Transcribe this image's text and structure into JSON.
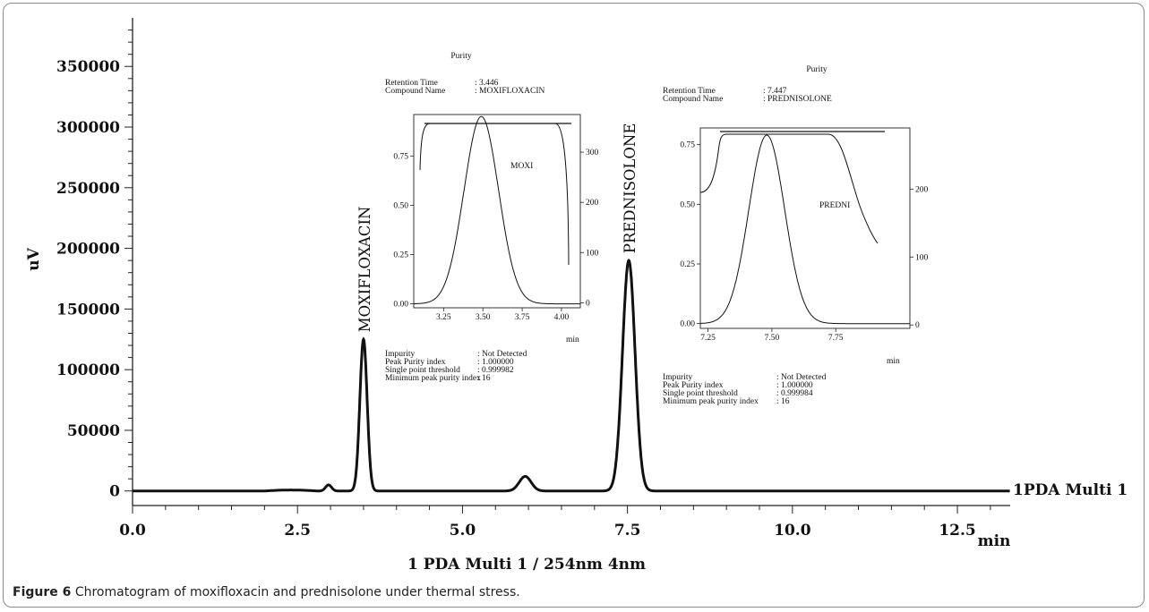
{
  "caption": {
    "label": "Figure 6",
    "text": "Chromatogram of moxifloxacin and prednisolone under thermal stress."
  },
  "chart_data": [
    {
      "type": "line",
      "xlabel": "1 PDA Multi 1 / 254nm 4nm",
      "x_unit": "min",
      "ylabel": "uV",
      "xlim": [
        0,
        13.3
      ],
      "ylim": [
        -12000,
        390000
      ],
      "xticks": [
        "0.0",
        "2.5",
        "5.0",
        "7.5",
        "10.0",
        "12.5"
      ],
      "yticks": [
        "0",
        "50000",
        "100000",
        "150000",
        "200000",
        "250000",
        "300000",
        "350000"
      ],
      "series_label": "1PDA Multi 1",
      "peaks": [
        {
          "label": "",
          "x": 2.97,
          "y": 5000
        },
        {
          "label": "MOXIFLOXACIN",
          "x": 3.5,
          "y": 125000
        },
        {
          "label": "",
          "x": 5.95,
          "y": 12000
        },
        {
          "label": "PREDNISOLONE",
          "x": 7.52,
          "y": 190000
        }
      ]
    },
    {
      "type": "line",
      "title": "Purity",
      "info": [
        {
          "key": "Retention Time",
          "value": ": 3.446"
        },
        {
          "key": "Compound Name",
          "value": ": MOXIFLOXACIN"
        }
      ],
      "series_label": "MOXI",
      "xlim": [
        3.06,
        4.12
      ],
      "xticks": [
        "3.25",
        "3.50",
        "3.75",
        "4.00"
      ],
      "ylim_left": [
        -0.02,
        0.96
      ],
      "yticks_left": [
        "0.00",
        "0.25",
        "0.50",
        "0.75"
      ],
      "ylim_right": [
        -10,
        375
      ],
      "yticks_right": [
        "0",
        "100",
        "200",
        "300"
      ],
      "x_unit": "min",
      "peak_x": 3.49,
      "peak_y": 0.95,
      "purity": [
        {
          "key": "Impurity",
          "value": ": Not Detected"
        },
        {
          "key": "Peak Purity index",
          "value": ": 1.000000"
        },
        {
          "key": "Single point threshold",
          "value": ": 0.999982"
        },
        {
          "key": "Minimum peak purity index",
          "value": ": 16"
        }
      ]
    },
    {
      "type": "line",
      "title": "Purity",
      "info": [
        {
          "key": "Retention Time",
          "value": ": 7.447"
        },
        {
          "key": "Compound Name",
          "value": ": PREDNISOLONE"
        }
      ],
      "series_label": "PREDNI",
      "xlim": [
        7.22,
        8.04
      ],
      "xticks": [
        "7.25",
        "7.50",
        "7.75"
      ],
      "ylim_left": [
        -0.02,
        0.82
      ],
      "yticks_left": [
        "0.00",
        "0.25",
        "0.50",
        "0.75"
      ],
      "ylim_right": [
        -5,
        290
      ],
      "yticks_right": [
        "0",
        "100",
        "200"
      ],
      "x_unit": "min",
      "peak_x": 7.48,
      "peak_y": 0.79,
      "purity": [
        {
          "key": "Impurity",
          "value": ": Not Detected"
        },
        {
          "key": "Peak Purity index",
          "value": ": 1.000000"
        },
        {
          "key": "Single point threshold",
          "value": ": 0.999984"
        },
        {
          "key": "Minimum peak purity index",
          "value": ": 16"
        }
      ]
    }
  ]
}
